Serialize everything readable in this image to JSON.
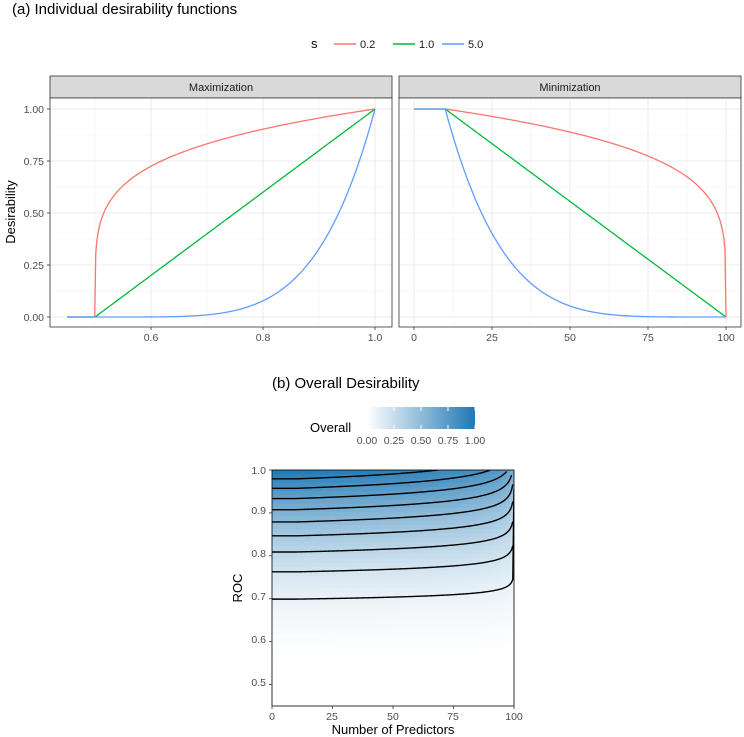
{
  "chart_data": [
    {
      "type": "line",
      "title": "(a) Individual desirability functions",
      "ylabel": "Desirability",
      "legend": {
        "title": "s",
        "placement": "top",
        "entries": [
          "0.2",
          "1.0",
          "5.0"
        ]
      },
      "colors": {
        "0.2": "#F8766D",
        "1.0": "#00BA38",
        "5.0": "#619CFF"
      },
      "ylim": [
        0,
        1
      ],
      "yticks": [
        "0.00",
        "0.25",
        "0.50",
        "0.75",
        "1.00"
      ],
      "grid": true,
      "panels": [
        {
          "strip": "Maximization",
          "xlim": [
            0.45,
            1.0
          ],
          "xticks": [
            "0.6",
            "0.8",
            "1.0"
          ],
          "low": 0.5,
          "high": 1.0,
          "series": [
            {
              "name": "0.2",
              "s": 0.2,
              "x": [
                0.45,
                0.5,
                0.55,
                0.6,
                0.65,
                0.7,
                0.75,
                0.8,
                0.85,
                0.9,
                0.95,
                1.0
              ],
              "y": [
                0,
                0,
                0.631,
                0.725,
                0.786,
                0.833,
                0.871,
                0.903,
                0.931,
                0.956,
                0.979,
                1
              ]
            },
            {
              "name": "1.0",
              "s": 1.0,
              "x": [
                0.45,
                0.5,
                0.6,
                0.7,
                0.8,
                0.9,
                1.0
              ],
              "y": [
                0,
                0,
                0.2,
                0.4,
                0.6,
                0.8,
                1
              ]
            },
            {
              "name": "5.0",
              "s": 5.0,
              "x": [
                0.45,
                0.5,
                0.6,
                0.7,
                0.8,
                0.9,
                1.0
              ],
              "y": [
                0,
                0,
                0.0003,
                0.01,
                0.078,
                0.328,
                1
              ]
            }
          ]
        },
        {
          "strip": "Minimization",
          "xlim": [
            0,
            100
          ],
          "xticks": [
            "0",
            "25",
            "50",
            "75",
            "100"
          ],
          "low": 10,
          "high": 100,
          "series": [
            {
              "name": "0.2",
              "s": 0.2,
              "x": [
                0,
                10,
                20,
                30,
                40,
                50,
                60,
                70,
                80,
                90,
                95,
                100
              ],
              "y": [
                1,
                1,
                0.977,
                0.953,
                0.925,
                0.896,
                0.862,
                0.822,
                0.774,
                0.644,
                0.55,
                0
              ]
            },
            {
              "name": "1.0",
              "s": 1.0,
              "x": [
                0,
                10,
                25,
                50,
                75,
                100
              ],
              "y": [
                1,
                1,
                0.833,
                0.556,
                0.278,
                0
              ]
            },
            {
              "name": "5.0",
              "s": 5.0,
              "x": [
                0,
                10,
                20,
                30,
                40,
                50,
                60,
                70,
                80,
                90,
                100
              ],
              "y": [
                1,
                1,
                0.555,
                0.292,
                0.143,
                0.063,
                0.025,
                0.008,
                0.002,
                0.0003,
                0
              ]
            }
          ]
        }
      ]
    },
    {
      "type": "heatmap",
      "title": "(b) Overall Desirability",
      "xlabel": "Number of Predictors",
      "ylabel": "ROC",
      "xlim": [
        0,
        100
      ],
      "ylim": [
        0.45,
        1.0
      ],
      "xticks": [
        "0",
        "25",
        "50",
        "75",
        "100"
      ],
      "yticks": [
        "0.5",
        "0.6",
        "0.7",
        "0.8",
        "0.9",
        "1.0"
      ],
      "fill": "Overall = sqrt(d_ROC * d_Predictors), d_ROC = ((ROC-0.5)/0.5)^5 for ROC >= 0.5, d_Predictors = 1 for predictors <= 10, ((100-predictors)/90)^0.2 otherwise",
      "roc_low": 0.5,
      "roc_high": 1.0,
      "roc_s": 5,
      "pred_low": 10,
      "pred_high": 100,
      "pred_s": 0.2,
      "contour_levels": [
        0.1,
        0.2,
        0.3,
        0.4,
        0.5,
        0.6,
        0.7,
        0.8,
        0.9
      ],
      "legend": {
        "title": "Overall",
        "placement": "top",
        "ticks": [
          "0.00",
          "0.25",
          "0.50",
          "0.75",
          "1.00"
        ],
        "low_color": "#FFFFFF",
        "high_color": "#1F78B4"
      }
    }
  ]
}
